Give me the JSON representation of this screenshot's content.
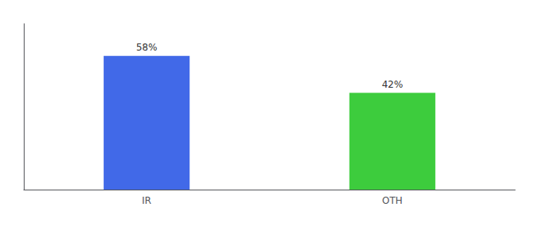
{
  "chart_data": {
    "type": "bar",
    "categories": [
      "IR",
      "OTH"
    ],
    "values": [
      58,
      42
    ],
    "value_labels": [
      "58%",
      "42%"
    ],
    "colors": [
      "#4169e8",
      "#3dcc3d"
    ],
    "ylim": [
      0,
      72
    ],
    "grid": false,
    "data_labels": true,
    "tick_labels": "x"
  }
}
